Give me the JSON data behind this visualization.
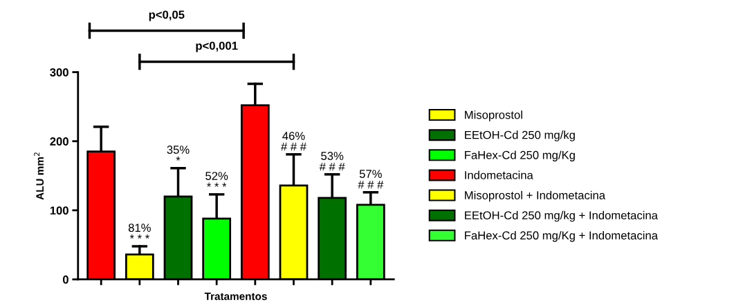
{
  "chart_data": {
    "type": "bar",
    "xlabel": "Tratamentos",
    "ylabel": "ALU mm$^{2}$",
    "categories": [
      null,
      null,
      null,
      null,
      null,
      null,
      null,
      null
    ],
    "series": [
      {
        "color": "#ff0000",
        "values": [
          185,
          null,
          null,
          null,
          null,
          null,
          null,
          null
        ],
        "errors": [
          [
            185,
            221
          ],
          null,
          null,
          null,
          null,
          null,
          null,
          null
        ]
      },
      {
        "name": "Misoprostol",
        "color": "#ffff00",
        "values": [
          null,
          36,
          null,
          null,
          null,
          null,
          null,
          null
        ],
        "errors": [
          null,
          [
            36,
            48
          ],
          null,
          null,
          null,
          null,
          null,
          null
        ]
      },
      {
        "name": "EEtOH-Cd 250 mg/kg",
        "color": "#007000",
        "values": [
          null,
          null,
          120,
          null,
          null,
          null,
          null,
          null
        ],
        "errors": [
          null,
          null,
          [
            120,
            161
          ],
          null,
          null,
          null,
          null,
          null
        ]
      },
      {
        "name": "FaHex-Cd 250 mg/Kg",
        "color": "#00ff00",
        "values": [
          null,
          null,
          null,
          88,
          null,
          null,
          null,
          null
        ],
        "errors": [
          null,
          null,
          null,
          [
            88,
            123
          ],
          null,
          null,
          null,
          null
        ]
      },
      {
        "name": "Indometacina",
        "color": "#ff0000",
        "values": [
          null,
          null,
          null,
          null,
          252,
          null,
          null,
          null
        ],
        "errors": [
          null,
          null,
          null,
          null,
          [
            252,
            283
          ],
          null,
          null,
          null
        ]
      },
      {
        "name": "Misoprostol + Indometacina",
        "color": "#ffff00",
        "values": [
          null,
          null,
          null,
          null,
          null,
          136,
          null,
          null
        ],
        "errors": [
          null,
          null,
          null,
          null,
          null,
          [
            136,
            181
          ],
          null,
          null
        ]
      },
      {
        "name": "EEtOH-Cd 250 mg/kg + Indometacina",
        "color": "#007000",
        "values": [
          null,
          null,
          null,
          null,
          null,
          null,
          118,
          null
        ],
        "errors": [
          null,
          null,
          null,
          null,
          null,
          null,
          [
            118,
            152
          ],
          null
        ]
      },
      {
        "name": "FaHex-Cd 250 mg/Kg + Indometacina",
        "color": "#33ff33",
        "values": [
          null,
          null,
          null,
          null,
          null,
          null,
          null,
          108
        ],
        "errors": [
          null,
          null,
          null,
          null,
          null,
          null,
          null,
          [
            108,
            126
          ]
        ]
      }
    ],
    "ylim": [
      0,
      300
    ],
    "yticks": [
      0,
      100,
      200,
      300
    ],
    "annotations": [
      "p<0,05",
      "p<0,001",
      {
        "text": "81%\n* * *",
        "y": 48
      },
      {
        "text": "35%\n*",
        "y": 161
      },
      {
        "text": "52%\n* * *",
        "y": 123
      },
      {
        "text": "46%\n# # #",
        "y": 181
      },
      {
        "text": "53%\n# # #",
        "y": 152
      },
      {
        "text": "57%\n# # #",
        "y": 126
      }
    ],
    "legend": "right",
    "grid": false
  }
}
